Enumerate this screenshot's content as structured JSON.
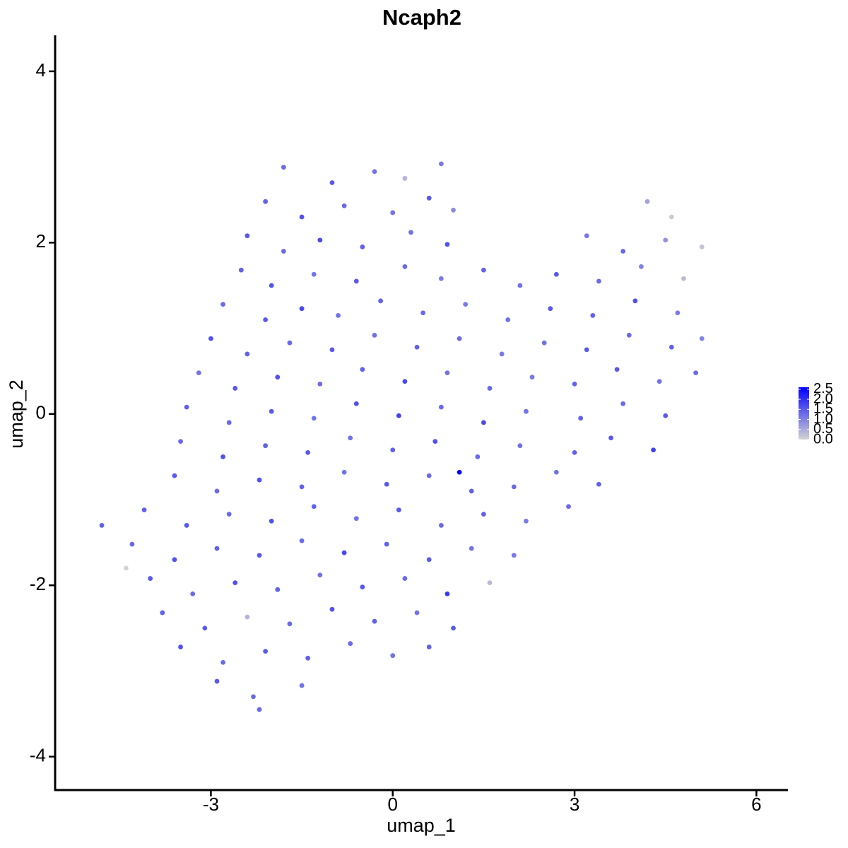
{
  "chart_data": {
    "type": "scatter",
    "title": "Ncaph2",
    "x_label": "umap_1",
    "y_label": "umap_2",
    "xlim": [
      -5.57,
      6.52
    ],
    "ylim": [
      -4.39,
      4.42
    ],
    "xticks": [
      -3,
      0,
      3,
      6
    ],
    "yticks": [
      -4,
      -2,
      0,
      2,
      4
    ],
    "color_low": "#d3d3d3",
    "color_high": "#0000ff",
    "clim": [
      0,
      2.6
    ],
    "cticks": [
      {
        "value": 0,
        "label": "0.0"
      },
      0.5,
      {
        "value": 1,
        "label": "1.0"
      },
      1.5,
      {
        "value": 2,
        "label": "2.0"
      },
      2.5
    ],
    "legend": "right",
    "x": [
      -1.8,
      -1,
      -0.3,
      0.2,
      0.8,
      -2.1,
      -1.5,
      -0.8,
      0,
      0.6,
      1.0,
      4.2,
      4.6,
      -2.4,
      -1.8,
      -1.2,
      -0.5,
      0.3,
      0.9,
      3.2,
      3.8,
      4.5,
      5.1,
      -2.5,
      -2.0,
      -1.3,
      -0.6,
      0.2,
      0.8,
      1.5,
      2.1,
      2.7,
      3.4,
      4.1,
      4.8,
      -2.8,
      -2.1,
      -1.5,
      -0.9,
      -0.2,
      0.5,
      1.2,
      1.9,
      2.6,
      3.3,
      4.0,
      4.7,
      -3.0,
      -2.4,
      -1.7,
      -1.0,
      -0.3,
      0.4,
      1.1,
      1.8,
      2.5,
      3.2,
      3.9,
      4.6,
      5.1,
      -3.2,
      -2.6,
      -1.9,
      -1.2,
      -0.5,
      0.2,
      0.9,
      1.6,
      2.3,
      3.0,
      3.7,
      4.4,
      5.0,
      -3.4,
      -2.7,
      -2.0,
      -1.3,
      -0.6,
      0.1,
      0.8,
      1.5,
      2.2,
      3.1,
      3.8,
      4.5,
      -3.5,
      -2.8,
      -2.1,
      -1.4,
      -0.7,
      0.0,
      0.7,
      1.4,
      2.1,
      3.0,
      3.6,
      4.3,
      -3.6,
      -2.9,
      -2.2,
      -1.5,
      -0.8,
      -0.1,
      0.6,
      1.1,
      1.3,
      2.0,
      2.7,
      3.4,
      -4.1,
      -3.4,
      -2.7,
      -2.0,
      -1.3,
      -0.6,
      0.1,
      0.8,
      1.5,
      2.2,
      2.9,
      -4.3,
      -3.6,
      -2.9,
      -2.2,
      -1.5,
      -0.8,
      -0.1,
      0.6,
      1.3,
      2.0,
      -4.0,
      -3.3,
      -2.6,
      -1.9,
      -1.2,
      -0.5,
      0.2,
      0.9,
      1.6,
      -3.8,
      -3.1,
      -2.4,
      -1.7,
      -1.0,
      -0.3,
      0.4,
      1.0,
      -3.5,
      -2.8,
      -2.1,
      -1.4,
      -0.7,
      0.0,
      0.6,
      -2.9,
      -2.3,
      -1.5,
      -4.8,
      -4.4,
      -2.2
    ],
    "y": [
      2.88,
      2.7,
      2.83,
      2.75,
      2.92,
      2.48,
      2.3,
      2.43,
      2.35,
      2.52,
      2.38,
      2.48,
      2.3,
      2.08,
      1.9,
      2.03,
      1.95,
      2.12,
      1.98,
      2.08,
      1.9,
      2.03,
      1.95,
      1.68,
      1.5,
      1.63,
      1.55,
      1.72,
      1.58,
      1.68,
      1.5,
      1.63,
      1.55,
      1.72,
      1.58,
      1.28,
      1.1,
      1.23,
      1.15,
      1.32,
      1.18,
      1.28,
      1.1,
      1.23,
      1.15,
      1.32,
      1.18,
      0.88,
      0.7,
      0.83,
      0.75,
      0.92,
      0.78,
      0.88,
      0.7,
      0.83,
      0.75,
      0.92,
      0.78,
      0.88,
      0.48,
      0.3,
      0.43,
      0.35,
      0.52,
      0.38,
      0.48,
      0.3,
      0.43,
      0.35,
      0.52,
      0.38,
      0.48,
      0.08,
      -0.1,
      0.03,
      -0.05,
      0.12,
      -0.02,
      0.08,
      -0.1,
      0.03,
      -0.05,
      0.12,
      -0.02,
      -0.32,
      -0.5,
      -0.37,
      -0.45,
      -0.28,
      -0.42,
      -0.32,
      -0.5,
      -0.37,
      -0.45,
      -0.28,
      -0.42,
      -0.72,
      -0.9,
      -0.77,
      -0.85,
      -0.68,
      -0.82,
      -0.72,
      -0.68,
      -0.9,
      -0.85,
      -0.68,
      -0.82,
      -1.12,
      -1.3,
      -1.17,
      -1.25,
      -1.08,
      -1.22,
      -1.12,
      -1.3,
      -1.17,
      -1.25,
      -1.08,
      -1.52,
      -1.7,
      -1.57,
      -1.65,
      -1.48,
      -1.62,
      -1.52,
      -1.7,
      -1.57,
      -1.65,
      -1.92,
      -2.1,
      -1.97,
      -2.05,
      -1.88,
      -2.02,
      -1.92,
      -2.1,
      -1.97,
      -2.32,
      -2.5,
      -2.37,
      -2.45,
      -2.28,
      -2.42,
      -2.32,
      -2.5,
      -2.72,
      -2.9,
      -2.77,
      -2.85,
      -2.68,
      -2.82,
      -2.72,
      -3.12,
      -3.3,
      -3.17,
      -1.3,
      -1.8,
      -3.45
    ],
    "values": [
      1.3,
      1.5,
      1.2,
      0.4,
      1.1,
      1.4,
      1.6,
      1.3,
      1.2,
      1.5,
      0.9,
      0.6,
      0.1,
      1.5,
      1.3,
      1.7,
      1.4,
      1.2,
      1.6,
      1.1,
      1.3,
      0.8,
      0.2,
      1.4,
      1.6,
      1.2,
      1.5,
      1.3,
      1.1,
      1.4,
      1.2,
      1.5,
      1.3,
      1.0,
      0.3,
      1.3,
      1.5,
      1.7,
      1.2,
      1.4,
      1.3,
      1.1,
      1.2,
      1.5,
      1.4,
      1.6,
      1.1,
      1.6,
      1.4,
      1.3,
      1.5,
      1.2,
      1.4,
      1.3,
      1.1,
      1.2,
      1.5,
      1.3,
      1.4,
      1.0,
      1.2,
      1.5,
      1.6,
      1.3,
      1.4,
      1.7,
      1.2,
      1.3,
      1.1,
      1.4,
      1.5,
      1.2,
      1.3,
      1.4,
      1.3,
      1.5,
      1.2,
      1.6,
      1.8,
      1.3,
      1.7,
      1.2,
      1.4,
      1.3,
      1.5,
      1.3,
      1.6,
      1.4,
      1.5,
      1.2,
      1.4,
      1.6,
      1.3,
      1.2,
      1.4,
      1.5,
      1.8,
      1.5,
      1.3,
      1.6,
      1.4,
      1.2,
      1.5,
      1.3,
      2.6,
      1.4,
      1.3,
      1.2,
      1.4,
      1.4,
      1.5,
      1.3,
      1.6,
      1.4,
      1.2,
      1.5,
      1.3,
      1.4,
      1.1,
      1.3,
      1.3,
      1.6,
      1.4,
      1.5,
      1.3,
      1.7,
      1.4,
      1.5,
      1.2,
      1.1,
      1.5,
      1.3,
      1.6,
      1.4,
      1.2,
      1.5,
      1.3,
      1.9,
      0.3,
      1.4,
      1.5,
      0.4,
      1.3,
      1.6,
      1.4,
      1.2,
      1.5,
      1.6,
      1.3,
      1.5,
      1.4,
      1.3,
      1.2,
      1.4,
      1.5,
      1.3,
      1.2,
      1.4,
      0.0,
      1.3
    ]
  }
}
